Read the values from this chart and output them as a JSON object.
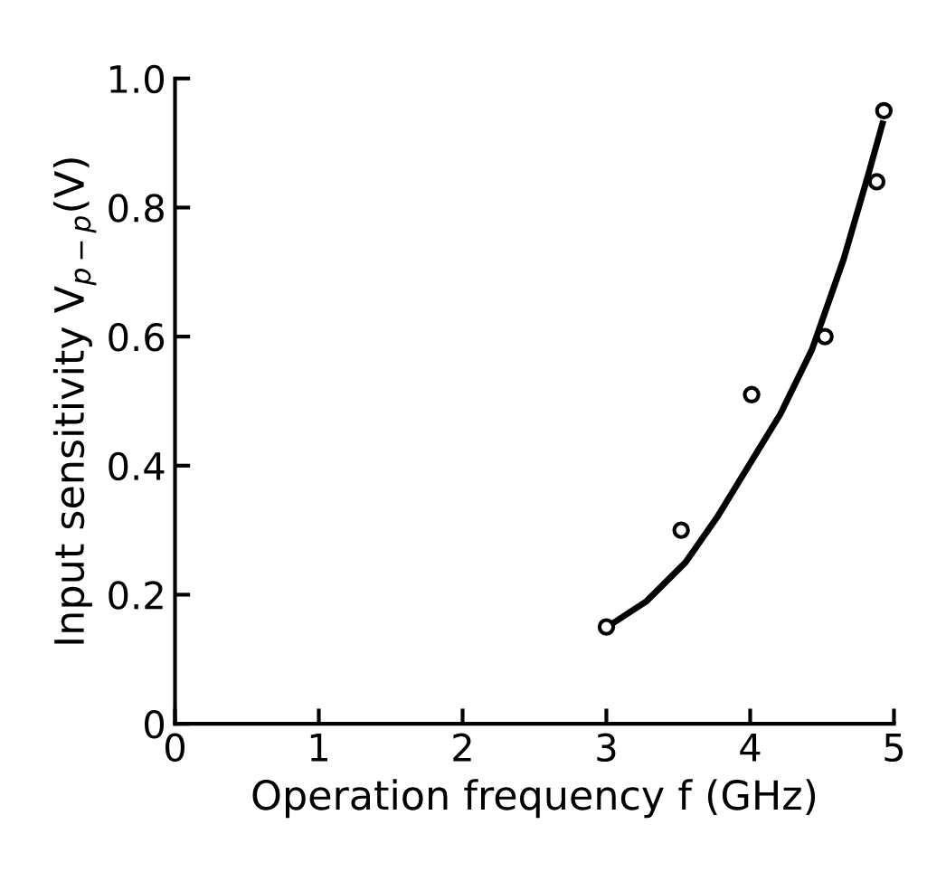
{
  "chart_data": {
    "type": "scatter",
    "xlabel": "Operation frequency f (GHz)",
    "ylabel": "Input sensitivity V$_{p−p}$(V)",
    "xlim": [
      0,
      5
    ],
    "ylim": [
      0,
      1.0
    ],
    "xticks": [
      0,
      1,
      2,
      3,
      4,
      5
    ],
    "yticks": [
      0,
      0.2,
      0.4,
      0.6,
      0.8,
      {
        "value": 1.0,
        "label": "1.0"
      }
    ],
    "grid": false,
    "legend": false,
    "series": [
      {
        "color": "#000000",
        "marker": "circle",
        "x": [
          3.0,
          3.52,
          4.01,
          4.52,
          4.88,
          4.93
        ],
        "values": [
          0.15,
          0.3,
          0.51,
          0.6,
          0.84,
          0.95
        ]
      },
      {
        "type": "line",
        "color": "#000000",
        "marker": "none",
        "line_style": "solid",
        "x": [
          3.04,
          3.28,
          3.55,
          3.77,
          3.99,
          4.21,
          4.43,
          4.65,
          4.82,
          4.92
        ],
        "values": [
          0.155,
          0.19,
          0.25,
          0.32,
          0.4,
          0.48,
          0.58,
          0.72,
          0.85,
          0.93
        ]
      }
    ]
  }
}
